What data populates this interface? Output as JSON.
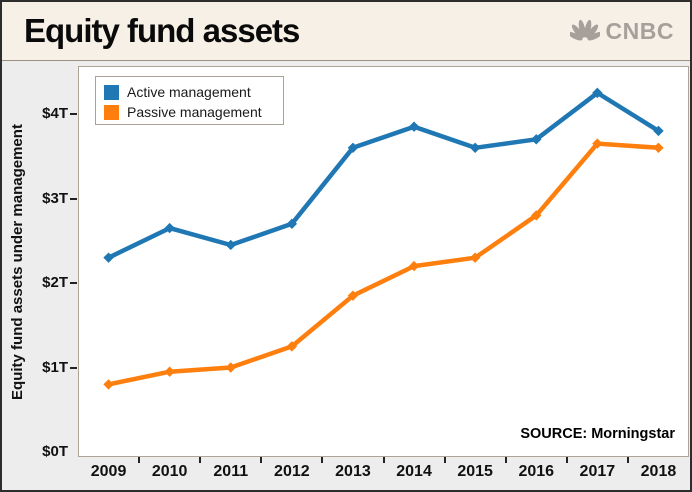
{
  "header": {
    "title": "Equity fund assets",
    "brand": "CNBC"
  },
  "colors": {
    "header_bg": "#f7f0e7",
    "chart_bg": "#ededed",
    "plot_bg": "#ffffff",
    "active_blue": "#1f77b4",
    "passive_orange": "#ff7f0e",
    "brand_gray": "#a5a09a",
    "tick_color": "#222222"
  },
  "chart_data": {
    "type": "line",
    "title": "Equity fund assets",
    "xlabel": "",
    "ylabel": "Equity fund assets under management",
    "categories": [
      "2009",
      "2010",
      "2011",
      "2012",
      "2013",
      "2014",
      "2015",
      "2016",
      "2017",
      "2018"
    ],
    "series": [
      {
        "name": "Active management",
        "color": "#1f77b4",
        "values": [
          2.3,
          2.65,
          2.45,
          2.7,
          3.6,
          3.85,
          3.6,
          3.7,
          4.25,
          3.8
        ]
      },
      {
        "name": "Passive management",
        "color": "#ff7f0e",
        "values": [
          0.8,
          0.95,
          1.0,
          1.25,
          1.85,
          2.2,
          2.3,
          2.8,
          3.65,
          3.6
        ]
      }
    ],
    "y_ticks": [
      {
        "value": 4,
        "label": "$4T"
      },
      {
        "value": 3,
        "label": "$3T"
      },
      {
        "value": 2,
        "label": "$2T"
      },
      {
        "value": 1,
        "label": "$1T"
      },
      {
        "value": 0,
        "label": "$0T"
      }
    ],
    "ylim": [
      0,
      4.57
    ],
    "grid": false,
    "legend_position": "top-left",
    "source_note": "SOURCE: Morningstar"
  }
}
